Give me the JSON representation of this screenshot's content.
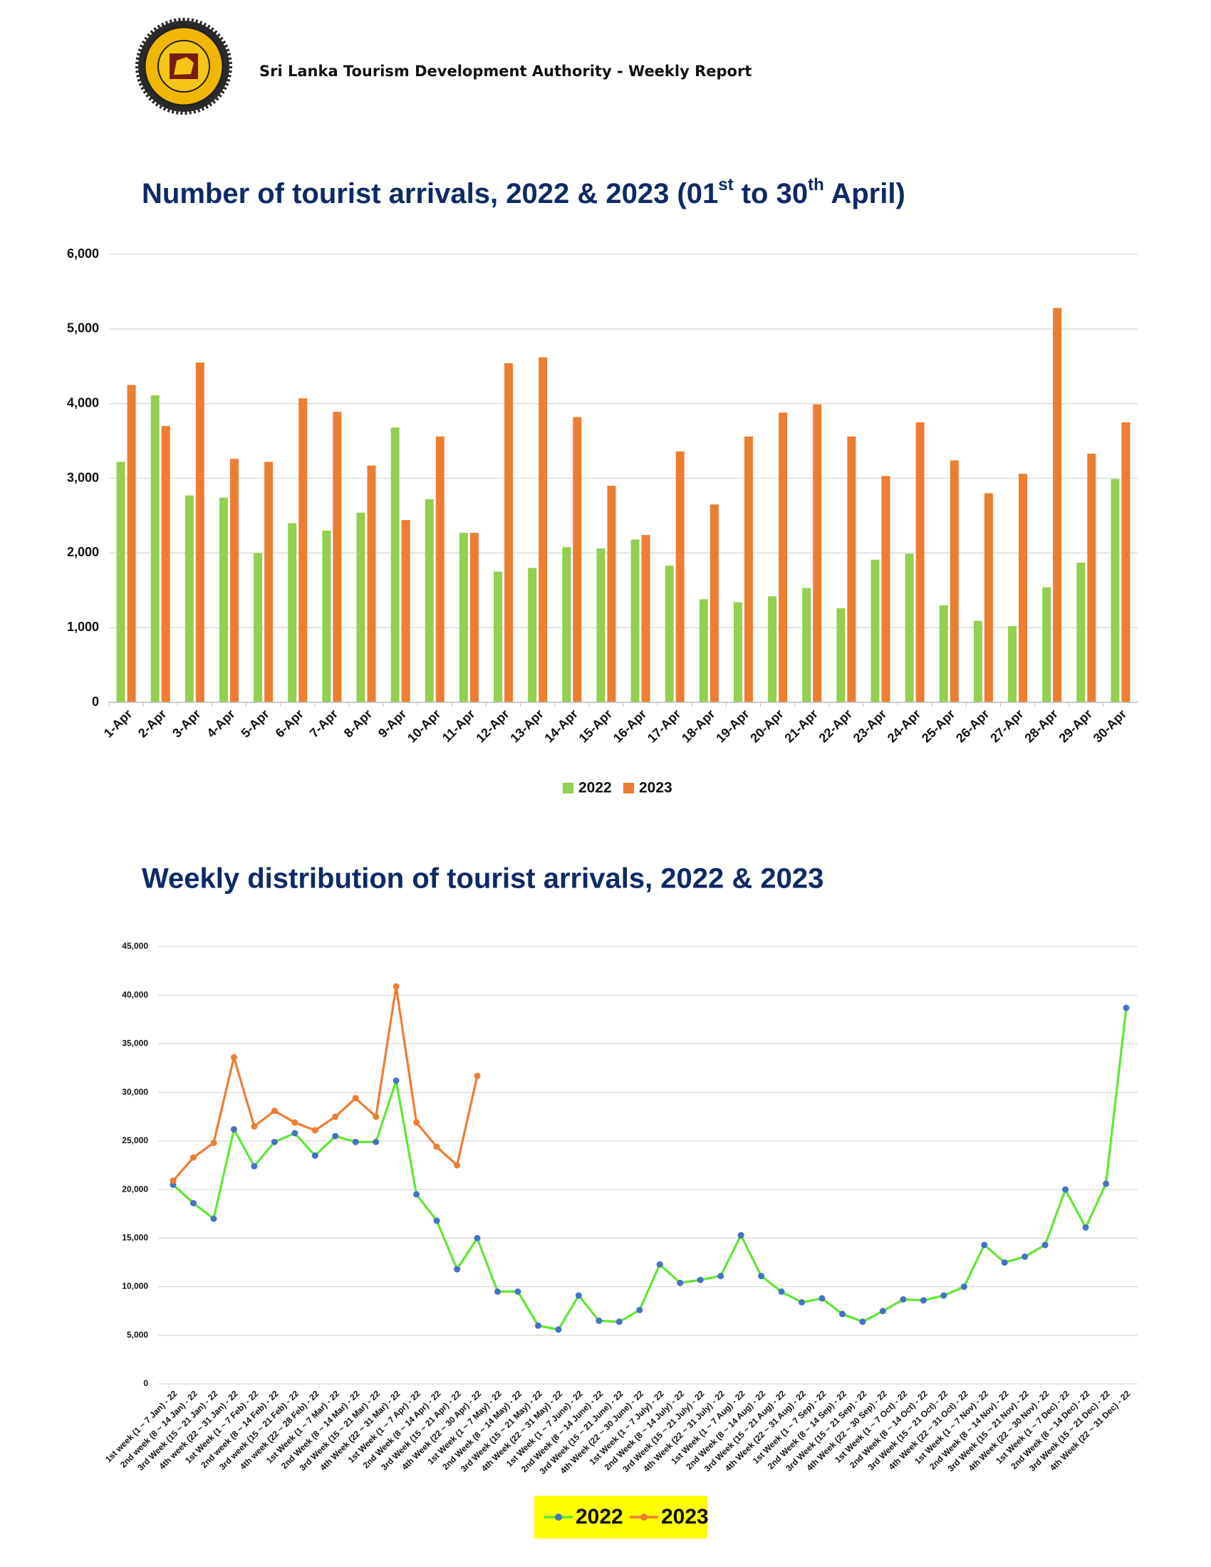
{
  "header": {
    "title": "Sri Lanka Tourism Development Authority - Weekly Report"
  },
  "chart_data": [
    {
      "type": "bar",
      "title": [
        "Number of tourist arrivals, 2022 & 2023 (01",
        "st",
        " to 30",
        "th",
        " April)"
      ],
      "categories": [
        "1-Apr",
        "2-Apr",
        "3-Apr",
        "4-Apr",
        "5-Apr",
        "6-Apr",
        "7-Apr",
        "8-Apr",
        "9-Apr",
        "10-Apr",
        "11-Apr",
        "12-Apr",
        "13-Apr",
        "14-Apr",
        "15-Apr",
        "16-Apr",
        "17-Apr",
        "18-Apr",
        "19-Apr",
        "20-Apr",
        "21-Apr",
        "22-Apr",
        "23-Apr",
        "24-Apr",
        "25-Apr",
        "26-Apr",
        "27-Apr",
        "28-Apr",
        "29-Apr",
        "30-Apr"
      ],
      "series": [
        {
          "name": "2022",
          "color": "#92d050",
          "values": [
            3220,
            4110,
            2770,
            2740,
            2000,
            2400,
            2300,
            2540,
            3680,
            2720,
            2270,
            1750,
            1800,
            2080,
            2060,
            2180,
            1830,
            1380,
            1340,
            1420,
            1530,
            1260,
            1910,
            1990,
            1300,
            1090,
            1020,
            1540,
            1870,
            2990
          ]
        },
        {
          "name": "2023",
          "color": "#ed7d31",
          "values": [
            4250,
            3700,
            4550,
            3260,
            3220,
            4070,
            3890,
            3170,
            2440,
            3560,
            2270,
            4540,
            4620,
            3820,
            2900,
            2240,
            3360,
            2650,
            3560,
            3880,
            3990,
            3560,
            3030,
            3750,
            3240,
            2800,
            3060,
            5280,
            3330,
            3750
          ]
        }
      ],
      "ylim": [
        0,
        6000
      ],
      "yticks": [
        0,
        {
          "value": 1000,
          "label": "1,000"
        },
        {
          "value": 2000,
          "label": "2,000"
        },
        {
          "value": 3000,
          "label": "3,000"
        },
        {
          "value": 4000,
          "label": "4,000"
        },
        {
          "value": 5000,
          "label": "5,000"
        },
        {
          "value": 6000,
          "label": "6,000"
        }
      ],
      "grid": true,
      "legend": "bottom"
    },
    {
      "type": "line",
      "title": "Weekly distribution  of tourist arrivals, 2022 & 2023",
      "categories": [
        "1st week (1 ~ 7 Jan) - 22",
        "2nd week (8 ~ 14 Jan) - 22",
        "3rd Week (15 ~ 21 Jan) - 22",
        "4th week (22 ~ 31 Jan) - 22",
        "1st Week (1 ~ 7 Feb) - 22",
        "2nd week (8 ~ 14 Feb) - 22",
        "3rd week (15 ~ 21 Feb) - 22",
        "4th week (22 ~ 28 Feb) - 22",
        "1st Week (1 ~ 7 Mar) - 22",
        "2nd Week (8 ~ 14 Mar) - 22",
        "3rd Week (15 ~ 21 Mar) - 22",
        "4th Week (22 ~ 31 Mar) - 22",
        "1st Week (1 ~ 7 Apr) - 22",
        "2nd Week (8 ~ 14 Apr) - 22",
        "3rd Week (15 ~ 21 Apr) - 22",
        "4th Week (22 ~ 30 Apr) - 22",
        "1st Week (1 ~ 7 May) - 22",
        "2nd Week (8 ~ 14 May) - 22",
        "3rd Week (15 ~ 21 May) - 22",
        "4th Week (22 ~ 31 May) - 22",
        "1st Week (1 ~ 7 June) - 22",
        "2nd Week (8 ~ 14 June) - 22",
        "3rd Week (15 ~ 21 June) - 22",
        "4th Week (22 ~ 30 June) - 22",
        "1st Week (1 ~ 7 July) - 22",
        "2nd Week (8 ~ 14 July) - 22",
        "3rd Week (15 ~ 21 July) - 22",
        "4th Week (22 ~ 31 July) - 22",
        "1st Week (1 ~ 7 Aug) - 22",
        "2nd Week (8 ~ 14 Aug) - 22",
        "3rd Week (15 ~ 21 Aug) - 22",
        "4th Week (22 ~ 31 Aug) - 22",
        "1st Week (1 ~ 7 Sep) - 22",
        "2nd Week (8 ~ 14 Sep) - 22",
        "3rd Week (15 ~ 21 Sep) - 22",
        "4th Week (22 ~ 30 Sep) - 22",
        "1st Week (1 ~ 7 Oct) - 22",
        "2nd Week (8 ~ 14 Oct) - 22",
        "3rd Week (15 ~ 21 Oct) - 22",
        "4th Week (22 ~ 31 Oct) - 22",
        "1st Week (1 ~ 7 Nov) - 22",
        "2nd Week (8 ~ 14 Nov) - 22",
        "3rd Week (15 ~ 21 Nov) - 22",
        "4th Week (22 ~ 30 Nov) - 22",
        "1st Week (1 ~ 7 Dec) - 22",
        "2nd Week (8 ~ 14 Dec) - 22",
        "3rd Week (15 ~ 21 Dec) - 22",
        "4th Week (22 ~ 31 Dec) - 22"
      ],
      "series": [
        {
          "name": "2022",
          "color": "#5ee832",
          "marker_color": "#4472c4",
          "values": [
            20500,
            18600,
            17000,
            26200,
            22400,
            24900,
            25800,
            23500,
            25500,
            24900,
            24900,
            31200,
            19500,
            16800,
            11800,
            15000,
            9500,
            9500,
            6000,
            5600,
            9100,
            6500,
            6400,
            7600,
            12300,
            10400,
            10700,
            11100,
            15300,
            11100,
            9500,
            8400,
            8800,
            7200,
            6400,
            7500,
            8700,
            8600,
            9100,
            10000,
            14300,
            12500,
            13100,
            14300,
            20000,
            16100,
            20600,
            38700
          ]
        },
        {
          "name": "2023",
          "color": "#ed7d31",
          "marker_color": "#ed7d31",
          "values": [
            20900,
            23300,
            24800,
            33600,
            26500,
            28100,
            26900,
            26100,
            27500,
            29400,
            27500,
            40900,
            26900,
            24400,
            22500,
            31700,
            null,
            null,
            null,
            null,
            null,
            null,
            null,
            null,
            null,
            null,
            null,
            null,
            null,
            null,
            null,
            null,
            null,
            null,
            null,
            null,
            null,
            null,
            null,
            null,
            null,
            null,
            null,
            null,
            null,
            null,
            null,
            null
          ]
        }
      ],
      "ylim": [
        0,
        45000
      ],
      "yticks": [
        0,
        {
          "value": 5000,
          "label": "5,000"
        },
        {
          "value": 10000,
          "label": "10,000"
        },
        {
          "value": 15000,
          "label": "15,000"
        },
        {
          "value": 20000,
          "label": "20,000"
        },
        {
          "value": 25000,
          "label": "25,000"
        },
        {
          "value": 30000,
          "label": "30,000"
        },
        {
          "value": 35000,
          "label": "35,000"
        },
        {
          "value": 40000,
          "label": "40,000"
        },
        {
          "value": 45000,
          "label": "45,000"
        }
      ],
      "grid": true,
      "legend": "bottom",
      "legend_background": "#ffff00"
    }
  ]
}
